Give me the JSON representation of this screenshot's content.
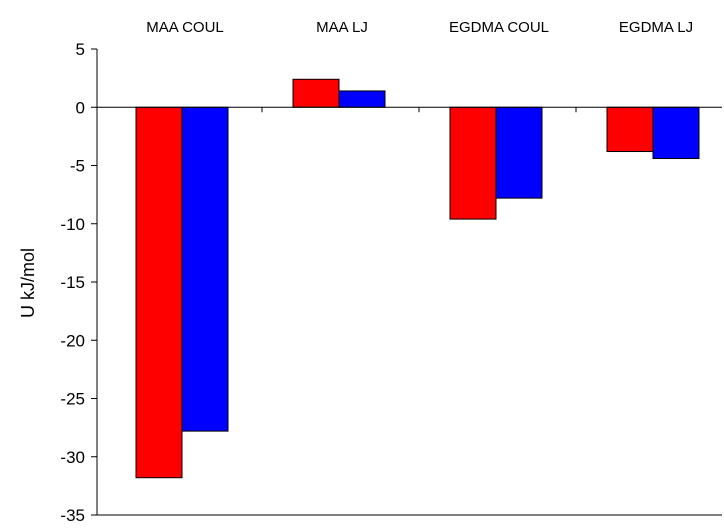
{
  "chart_data": {
    "type": "bar",
    "title": "",
    "xlabel": "",
    "ylabel": "U kJ/mol",
    "categories": [
      "MAA COUL",
      "MAA LJ",
      "EGDMA COUL",
      "EGDMA LJ"
    ],
    "series": [
      {
        "color": "#ff0000",
        "values": [
          -31.8,
          2.4,
          -9.6,
          -3.8
        ]
      },
      {
        "color": "#0000ff",
        "values": [
          -27.8,
          1.4,
          -7.8,
          -4.4
        ]
      }
    ],
    "ylim": [
      -35,
      5
    ],
    "yticks": [
      5,
      0,
      -5,
      -10,
      -15,
      -20,
      -25,
      -30,
      -35
    ],
    "ytick_labels": [
      "5",
      "0",
      "-5",
      "-10",
      "-15",
      "-20",
      "-25",
      "-30",
      "-35"
    ],
    "category_labels_position": "top",
    "grid": false,
    "legend": "none",
    "bar_outline_color": "#000000"
  }
}
